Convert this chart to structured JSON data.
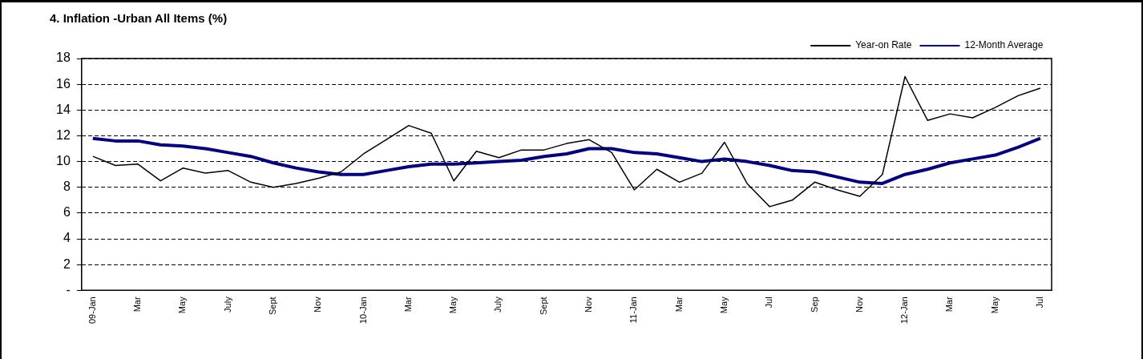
{
  "chart_data": {
    "type": "line",
    "title": "4. Inflation -Urban All Items (%)",
    "categories": [
      "09-Jan",
      null,
      "Mar",
      null,
      "May",
      null,
      "July",
      null,
      "Sept",
      null,
      "Nov",
      null,
      "10-Jan",
      null,
      "Mar",
      null,
      "May",
      null,
      "July",
      null,
      "Sept",
      null,
      "Nov",
      null,
      "11-Jan",
      null,
      "Mar",
      null,
      "May",
      null,
      "Jul",
      null,
      "Sep",
      null,
      "Nov",
      null,
      "12-Jan",
      null,
      "Mar",
      null,
      "May",
      null,
      "Jul"
    ],
    "series": [
      {
        "name": "Year-on Rate",
        "color": "#000000",
        "values": [
          10.4,
          9.7,
          9.8,
          8.5,
          9.5,
          9.1,
          9.3,
          8.4,
          8.0,
          8.3,
          8.7,
          9.2,
          10.6,
          11.7,
          12.8,
          12.2,
          8.5,
          10.8,
          10.3,
          10.9,
          10.9,
          11.4,
          11.7,
          10.7,
          7.8,
          9.4,
          8.4,
          9.1,
          11.5,
          8.3,
          6.5,
          7.0,
          8.4,
          7.8,
          7.3,
          9.0,
          16.6,
          13.2,
          13.7,
          13.4,
          14.2,
          15.1,
          15.7
        ]
      },
      {
        "name": "12-Month Average",
        "color": "#000080",
        "values": [
          11.8,
          11.6,
          11.6,
          11.3,
          11.2,
          11.0,
          10.7,
          10.4,
          9.9,
          9.5,
          9.2,
          9.0,
          9.0,
          9.3,
          9.6,
          9.8,
          9.8,
          9.9,
          10.0,
          10.1,
          10.4,
          10.6,
          11.0,
          11.0,
          10.7,
          10.6,
          10.3,
          10.0,
          10.2,
          10.0,
          9.7,
          9.3,
          9.2,
          8.8,
          8.4,
          8.3,
          9.0,
          9.4,
          9.9,
          10.2,
          10.5,
          11.1,
          11.8
        ]
      }
    ],
    "ylim": [
      0,
      18
    ],
    "yticks": [
      {
        "value": 0,
        "label": "-"
      },
      2,
      4,
      6,
      8,
      10,
      12,
      14,
      16,
      18
    ],
    "grid": "y",
    "legend": "top",
    "marker": "none",
    "line_style": "solid"
  }
}
